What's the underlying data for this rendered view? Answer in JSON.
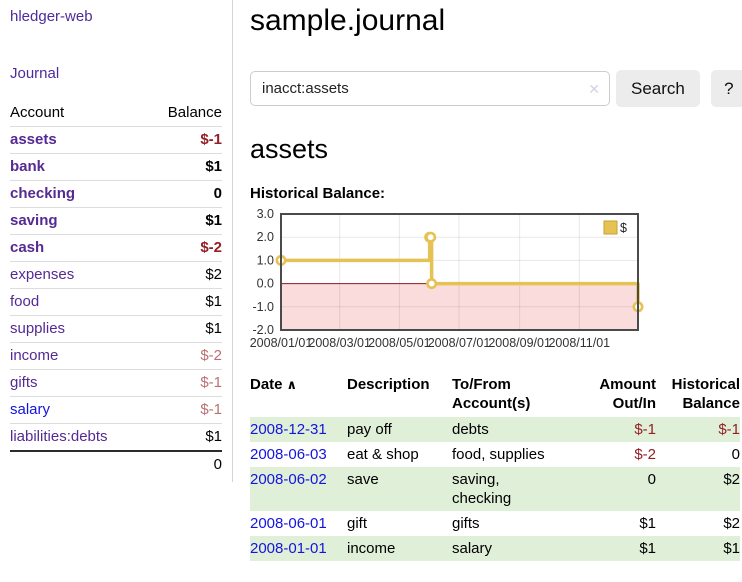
{
  "sidebar": {
    "brand": "hledger-web",
    "journal_link": "Journal",
    "accounts_table": {
      "headers": {
        "account": "Account",
        "balance": "Balance"
      },
      "rows": [
        {
          "account": "assets",
          "indent": 1,
          "bold": true,
          "balance": "$-1",
          "negative": "dark"
        },
        {
          "account": "bank",
          "indent": 2,
          "bold": true,
          "balance": "$1"
        },
        {
          "account": "checking",
          "indent": 3,
          "bold": true,
          "balance": "0"
        },
        {
          "account": "saving",
          "indent": 3,
          "bold": true,
          "balance": "$1"
        },
        {
          "account": "cash",
          "indent": 2,
          "bold": true,
          "balance": "$-2",
          "negative": "dark"
        },
        {
          "account": "expenses",
          "indent": 1,
          "bold": false,
          "balance": "$2"
        },
        {
          "account": "food",
          "indent": 2,
          "bold": false,
          "balance": "$1"
        },
        {
          "account": "supplies",
          "indent": 2,
          "bold": false,
          "balance": "$1"
        },
        {
          "account": "income",
          "indent": 1,
          "bold": false,
          "balance": "$-2",
          "negative": "light"
        },
        {
          "account": "gifts",
          "indent": 2,
          "bold": false,
          "balance": "$-1",
          "negative": "light"
        },
        {
          "account": "salary",
          "indent": 2,
          "bold": false,
          "balance": "$-1",
          "negative": "light",
          "link_color": "blue"
        },
        {
          "account": "liabilities:debts",
          "indent": 1,
          "bold": false,
          "balance": "$1"
        }
      ],
      "total": "0"
    }
  },
  "header": {
    "title": "sample.journal"
  },
  "search": {
    "value": "inacct:assets",
    "clear_icon": "✕",
    "button_label": "Search",
    "help_label": "?"
  },
  "account_page": {
    "heading": "assets",
    "chart_label": "Historical Balance:"
  },
  "chart_data": {
    "type": "line",
    "step": true,
    "title": "Historical Balance",
    "series": [
      {
        "name": "$",
        "x": [
          "2008-01-01",
          "2008-06-01",
          "2008-06-02",
          "2008-06-03",
          "2008-12-31"
        ],
        "values": [
          1,
          2,
          2,
          0,
          -1
        ]
      }
    ],
    "xlim": [
      "2008-01-01",
      "2008-12-31"
    ],
    "ylim": [
      -2,
      3
    ],
    "x_ticks": [
      {
        "date": "2008-01-01",
        "label": "2008/01/01"
      },
      {
        "date": "2008-03-01",
        "label": "2008/03/01"
      },
      {
        "date": "2008-05-01",
        "label": "2008/05/01"
      },
      {
        "date": "2008-07-01",
        "label": "2008/07/01"
      },
      {
        "date": "2008-09-01",
        "label": "2008/09/01"
      },
      {
        "date": "2008-11-01",
        "label": "2008/11/01"
      }
    ],
    "y_ticks": [
      {
        "value": 3,
        "label": "3.0"
      },
      {
        "value": 2,
        "label": "2.0"
      },
      {
        "value": 1,
        "label": "1.0"
      },
      {
        "value": 0,
        "label": "0.0"
      },
      {
        "value": -1,
        "label": "-1.0"
      },
      {
        "value": -2,
        "label": "-2.0"
      }
    ],
    "legend": {
      "label": "$",
      "position": "top-right"
    },
    "grid": true,
    "negative_region_shaded": true,
    "colors": {
      "line": "#e6c254",
      "point_fill": "#ffffff",
      "negative_fill": "#fbdcdc",
      "zero_line": "#8b1a1a",
      "grid": "#e3e3e3",
      "border": "#4a4a4a",
      "tick_text": "#333333",
      "legend_border": "#c7a42e"
    }
  },
  "register": {
    "sort_icon": "∧",
    "columns": [
      {
        "label": "Date",
        "align": "left",
        "sortable": true
      },
      {
        "label": "Description",
        "align": "left"
      },
      {
        "label": "To/From Account(s)",
        "align": "left"
      },
      {
        "label": "Amount Out/In",
        "align": "right"
      },
      {
        "label": "Historical Balance",
        "align": "right"
      }
    ],
    "rows": [
      {
        "date": "2008-12-31",
        "description": "pay off",
        "accounts": "debts",
        "amount": "$-1",
        "balance": "$-1"
      },
      {
        "date": "2008-06-03",
        "description": "eat & shop",
        "accounts": "food, supplies",
        "amount": "$-2",
        "balance": "0"
      },
      {
        "date": "2008-06-02",
        "description": "save",
        "accounts": "saving,\nchecking",
        "amount": "0",
        "balance": "$2"
      },
      {
        "date": "2008-06-01",
        "description": "gift",
        "accounts": "gifts",
        "amount": "$1",
        "balance": "$2"
      },
      {
        "date": "2008-01-01",
        "description": "income",
        "accounts": "salary",
        "amount": "$1",
        "balance": "$1"
      }
    ]
  },
  "colors": {
    "link_purple": "#4d2b9b",
    "link_blue": "#1414dd",
    "negative_dark": "#941f26",
    "negative_light": "#bb6f74",
    "row_green": "#e0efd8",
    "button_bg": "#ececec"
  }
}
